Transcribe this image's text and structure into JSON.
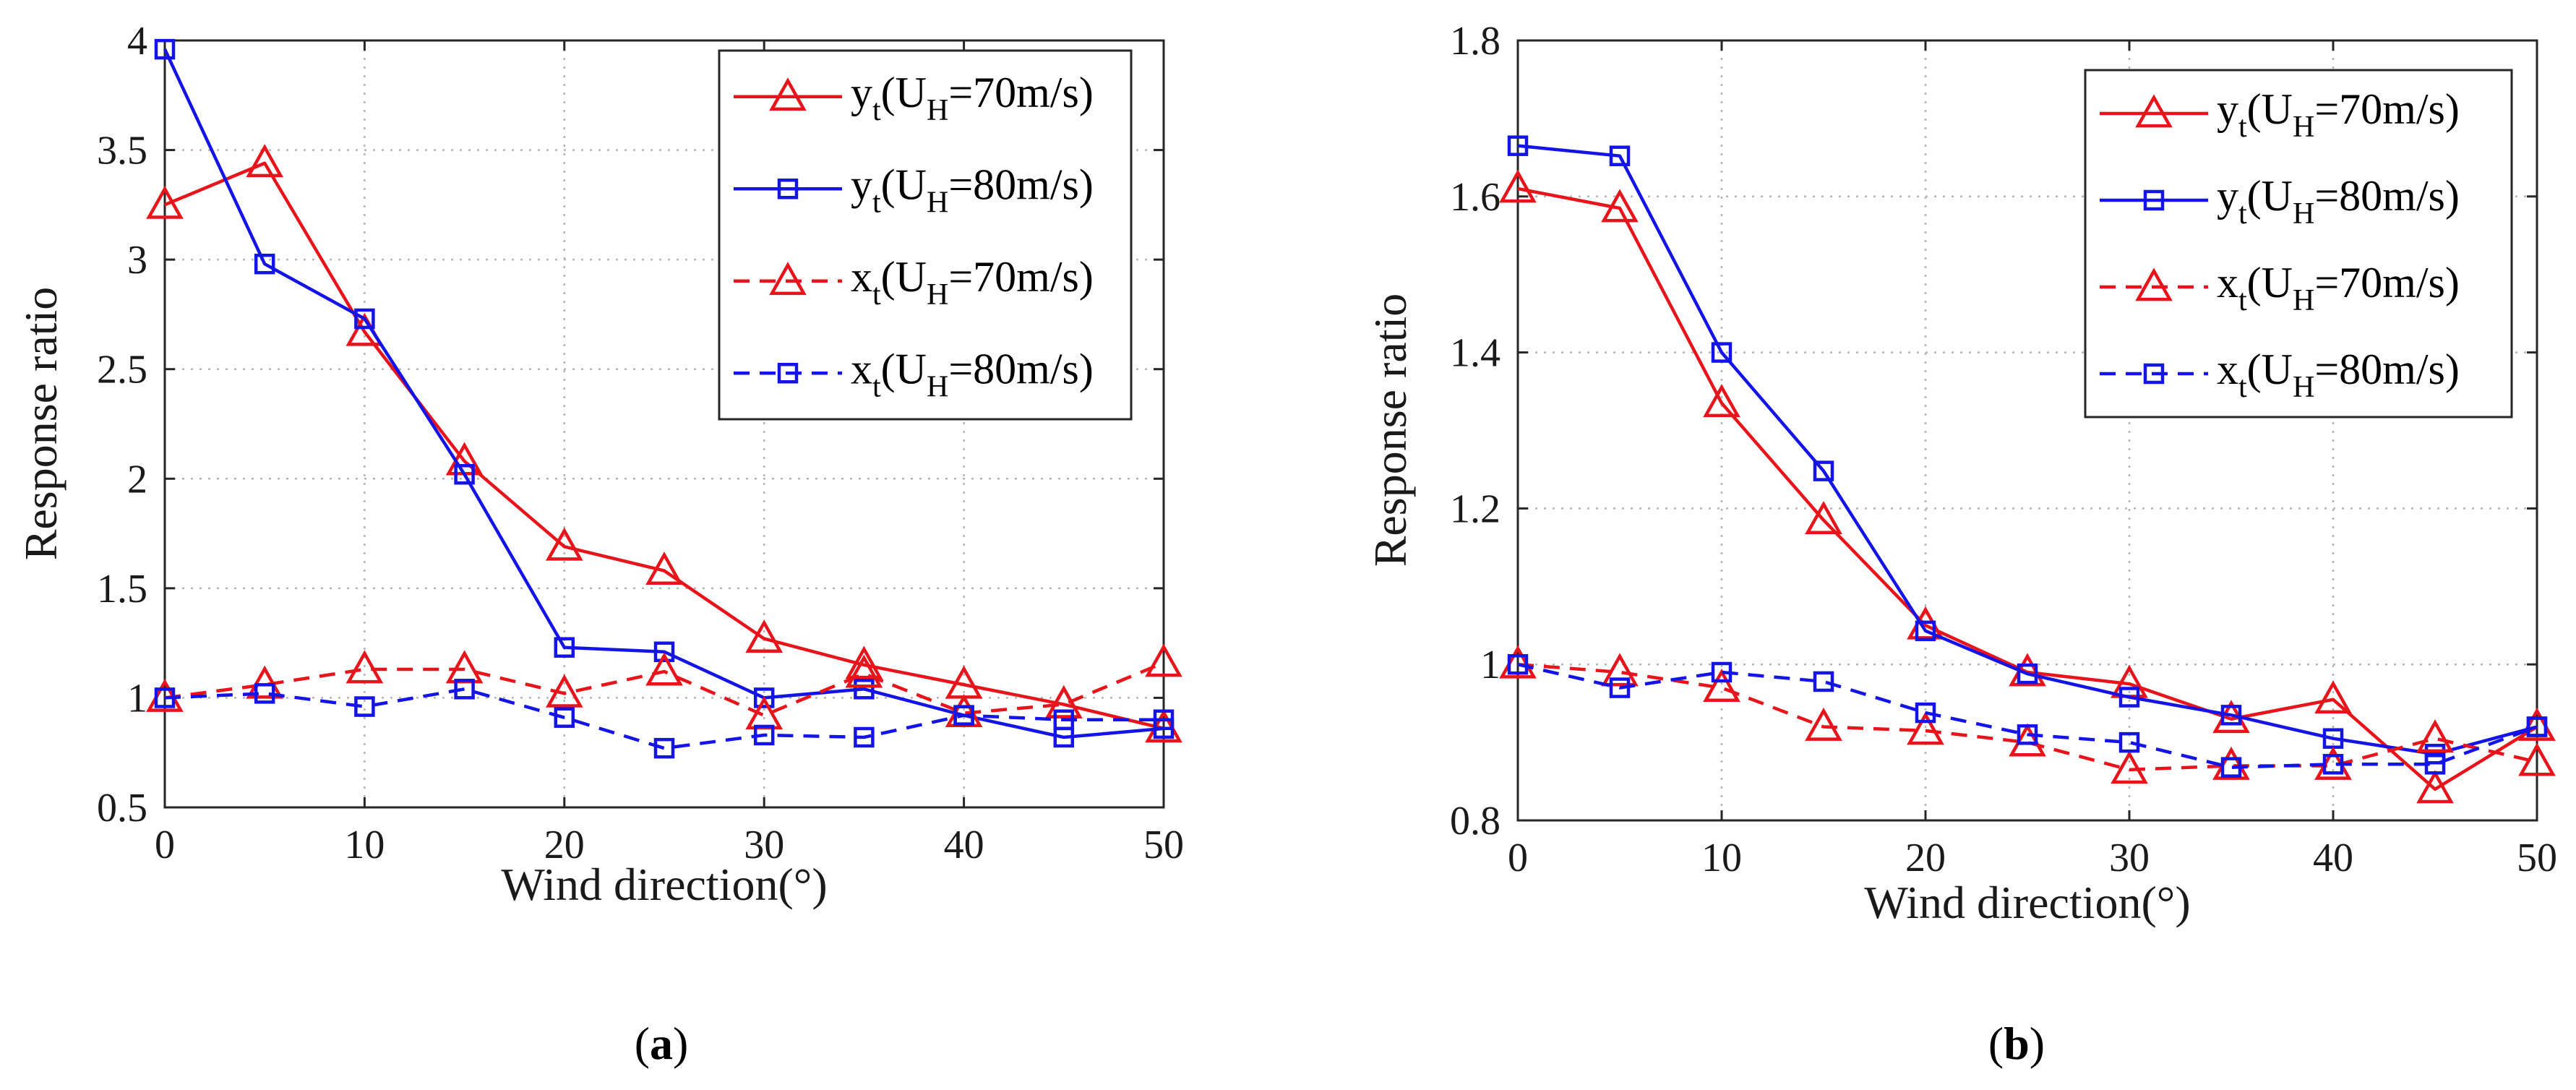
{
  "chart_data": [
    {
      "type": "line",
      "panel": "a",
      "caption": {
        "open": "(",
        "letter": "a",
        "close": ")"
      },
      "xlabel": "Wind direction(°)",
      "ylabel": "Response ratio",
      "xlim": [
        0,
        50
      ],
      "ylim": [
        0.5,
        4
      ],
      "xticks": [
        0,
        10,
        20,
        30,
        40,
        50
      ],
      "xtick_labels": [
        "0",
        "10",
        "20",
        "30",
        "40",
        "50"
      ],
      "yticks": [
        0.5,
        1,
        1.5,
        2,
        2.5,
        3,
        3.5,
        4
      ],
      "ytick_labels": [
        "0.5",
        "1",
        "1.5",
        "2",
        "2.5",
        "3",
        "3.5",
        "4"
      ],
      "grid": true,
      "legend_position": "top-right",
      "x": [
        0,
        5,
        10,
        15,
        20,
        25,
        30,
        35,
        40,
        45,
        50
      ],
      "series": [
        {
          "name": "yt(UH=70m/s)",
          "var": "y",
          "sub": "t",
          "cond": "U",
          "condsub": "H",
          "value": "=70m/s",
          "color": "#e8141b",
          "dash": "solid",
          "marker": "triangle",
          "values": [
            3.25,
            3.44,
            2.67,
            2.08,
            1.69,
            1.58,
            1.27,
            1.15,
            1.06,
            0.97,
            0.86
          ]
        },
        {
          "name": "yt(UH=80m/s)",
          "var": "y",
          "sub": "t",
          "cond": "U",
          "condsub": "H",
          "value": "=80m/s",
          "color": "#1414e6",
          "dash": "solid",
          "marker": "square",
          "values": [
            3.96,
            2.98,
            2.73,
            2.02,
            1.23,
            1.21,
            1.0,
            1.04,
            0.92,
            0.82,
            0.86
          ]
        },
        {
          "name": "xt(UH=70m/s)",
          "var": "x",
          "sub": "t",
          "cond": "U",
          "condsub": "H",
          "value": "=70m/s",
          "color": "#e8141b",
          "dash": "dashed",
          "marker": "triangle",
          "values": [
            1.0,
            1.06,
            1.13,
            1.13,
            1.02,
            1.12,
            0.92,
            1.11,
            0.93,
            0.97,
            1.16
          ]
        },
        {
          "name": "xt(UH=80m/s)",
          "var": "x",
          "sub": "t",
          "cond": "U",
          "condsub": "H",
          "value": "=80m/s",
          "color": "#1414e6",
          "dash": "dashed",
          "marker": "square",
          "values": [
            1.0,
            1.02,
            0.96,
            1.04,
            0.91,
            0.77,
            0.83,
            0.82,
            0.92,
            0.9,
            0.9
          ]
        }
      ]
    },
    {
      "type": "line",
      "panel": "b",
      "caption": {
        "open": "(",
        "letter": "b",
        "close": ")"
      },
      "xlabel": "Wind direction(°)",
      "ylabel": "Response ratio",
      "xlim": [
        0,
        50
      ],
      "ylim": [
        0.8,
        1.8
      ],
      "xticks": [
        0,
        10,
        20,
        30,
        40,
        50
      ],
      "xtick_labels": [
        "0",
        "10",
        "20",
        "30",
        "40",
        "50"
      ],
      "yticks": [
        0.8,
        1.0,
        1.2,
        1.4,
        1.6,
        1.8
      ],
      "ytick_labels": [
        "0.8",
        "1",
        "1.2",
        "1.4",
        "1.6",
        "1.8"
      ],
      "grid": true,
      "legend_position": "top-right",
      "x": [
        0,
        5,
        10,
        15,
        20,
        25,
        30,
        35,
        40,
        45,
        50
      ],
      "series": [
        {
          "name": "yt(UH=70m/s)",
          "var": "y",
          "sub": "t",
          "cond": "U",
          "condsub": "H",
          "value": "=70m/s",
          "color": "#e8141b",
          "dash": "solid",
          "marker": "triangle",
          "values": [
            1.61,
            1.585,
            1.335,
            1.185,
            1.05,
            0.99,
            0.975,
            0.93,
            0.955,
            0.84,
            0.92
          ]
        },
        {
          "name": "yt(UH=80m/s)",
          "var": "y",
          "sub": "t",
          "cond": "U",
          "condsub": "H",
          "value": "=80m/s",
          "color": "#1414e6",
          "dash": "solid",
          "marker": "square",
          "values": [
            1.665,
            1.652,
            1.4,
            1.248,
            1.043,
            0.988,
            0.958,
            0.935,
            0.905,
            0.885,
            0.92
          ]
        },
        {
          "name": "xt(UH=70m/s)",
          "var": "x",
          "sub": "t",
          "cond": "U",
          "condsub": "H",
          "value": "=70m/s",
          "color": "#e8141b",
          "dash": "dashed",
          "marker": "triangle",
          "values": [
            1.0,
            0.99,
            0.97,
            0.92,
            0.915,
            0.9,
            0.865,
            0.87,
            0.87,
            0.905,
            0.875
          ]
        },
        {
          "name": "xt(UH=80m/s)",
          "var": "x",
          "sub": "t",
          "cond": "U",
          "condsub": "H",
          "value": "=80m/s",
          "color": "#1414e6",
          "dash": "dashed",
          "marker": "square",
          "values": [
            1.0,
            0.97,
            0.99,
            0.978,
            0.938,
            0.91,
            0.9,
            0.868,
            0.872,
            0.872,
            0.92
          ]
        }
      ]
    }
  ]
}
